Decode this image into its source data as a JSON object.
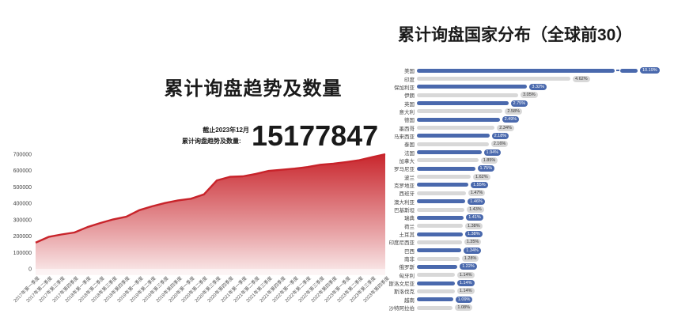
{
  "page": {
    "background": "#ffffff"
  },
  "left_chart": {
    "title": "累计询盘趋势及数量",
    "as_of_label": "截止2023年12月",
    "stat_label": "累计询盘趋势及数量:",
    "stat_value": "15177847"
  },
  "right_chart": {
    "title": "累计询盘国家分布（全球前30）"
  },
  "colors": {
    "trend_line": "#c8232a",
    "bar_blue": "#4a69ad",
    "bar_grey": "#d8d8d8",
    "text_dark": "#1a1a1a"
  },
  "chart_data": [
    {
      "type": "area",
      "title": "累计询盘趋势及数量",
      "annotation": "截止2023年12月 累计询盘趋势及数量: 15177847",
      "ylabel": "",
      "xlabel": "",
      "ylim": [
        0,
        700000
      ],
      "y_ticks": [
        0,
        100000,
        200000,
        300000,
        400000,
        500000,
        600000,
        700000
      ],
      "grid": false,
      "legend": "none",
      "line_color": "#c8232a",
      "fill": "red gradient fading to white",
      "x": [
        "2017年第一季度",
        "2017年第二季度",
        "2017年第三季度",
        "2017年第四季度",
        "2018年第一季度",
        "2018年第二季度",
        "2018年第三季度",
        "2018年第四季度",
        "2019年第一季度",
        "2019年第二季度",
        "2019年第三季度",
        "2019年第四季度",
        "2020年第一季度",
        "2020年第二季度",
        "2020年第三季度",
        "2020年第四季度",
        "2021年第一季度",
        "2021年第二季度",
        "2021年第三季度",
        "2021年第四季度",
        "2022年第一季度",
        "2022年第二季度",
        "2022年第三季度",
        "2022年第四季度",
        "2023年第一季度",
        "2023年第二季度",
        "2023年第三季度",
        "2023年第四季度"
      ],
      "values": [
        160000,
        195000,
        210000,
        222000,
        255000,
        280000,
        302000,
        318000,
        358000,
        382000,
        402000,
        418000,
        428000,
        455000,
        540000,
        562000,
        565000,
        580000,
        598000,
        605000,
        612000,
        622000,
        636000,
        642000,
        652000,
        664000,
        682000,
        700000
      ]
    },
    {
      "type": "bar",
      "orientation": "horizontal",
      "title": "累计询盘国家分布（全球前30）",
      "legend": "none",
      "note": "bars alternate blue/grey; top bar (美国) drawn with an axis break",
      "categories": [
        "美国",
        "印度",
        "保加利亚",
        "伊朗",
        "英国",
        "意大利",
        "德国",
        "墨西哥",
        "马来西亚",
        "泰国",
        "法国",
        "加拿大",
        "罗马尼亚",
        "波兰",
        "克罗地亚",
        "西班牙",
        "澳大利亚",
        "巴基斯坦",
        "瑞典",
        "荷兰",
        "土耳其",
        "印度尼西亚",
        "巴西",
        "南非",
        "俄罗斯",
        "匈牙利",
        "斯洛文尼亚",
        "斯洛伐克",
        "越南",
        "沙特阿拉伯"
      ],
      "values": [
        10.19,
        4.62,
        3.32,
        3.05,
        2.75,
        2.58,
        2.49,
        2.34,
        2.18,
        2.16,
        1.94,
        1.85,
        1.75,
        1.62,
        1.55,
        1.47,
        1.46,
        1.43,
        1.41,
        1.38,
        1.38,
        1.35,
        1.34,
        1.28,
        1.22,
        1.14,
        1.14,
        1.14,
        1.09,
        1.08
      ],
      "value_labels": [
        "10.19%",
        "4.62%",
        "3.32%",
        "3.05%",
        "2.75%",
        "2.58%",
        "2.49%",
        "2.34%",
        "2.18%",
        "2.16%",
        "1.94%",
        "1.85%",
        "1.75%",
        "1.62%",
        "1.55%",
        "1.47%",
        "1.46%",
        "1.43%",
        "1.41%",
        "1.38%",
        "1.38%",
        "1.35%",
        "1.34%",
        "1.28%",
        "1.22%",
        "1.14%",
        "1.14%",
        "1.14%",
        "1.09%",
        "1.08%"
      ]
    }
  ]
}
